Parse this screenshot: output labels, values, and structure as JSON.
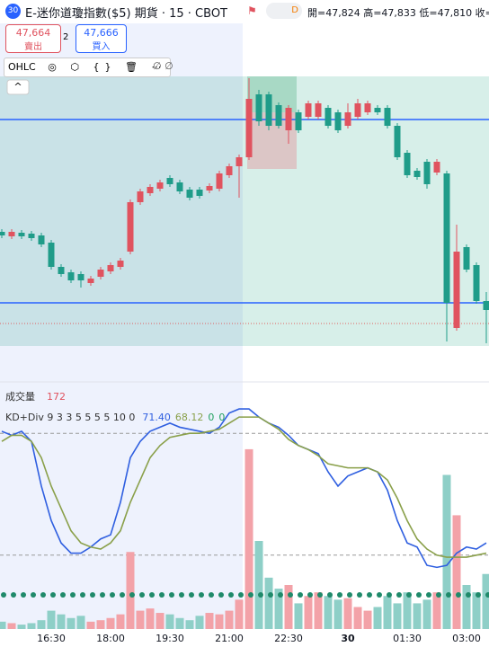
{
  "header": {
    "badge": "30",
    "title": "E-迷你道瓊指數($5) 期貨 · 15 · CBOT",
    "status": "D",
    "ohlc": "開=47,824 高=47,833 低=47,810 收="
  },
  "trade": {
    "sell_price": "47,664",
    "sell": "賣出",
    "qty": "2",
    "buy_price": "47,666",
    "buy": "買入"
  },
  "toolbar": {
    "label": "OHLC",
    "icons": "◎ ⬡ {} 🗑 ⋯",
    "extra": "∅ ∅"
  },
  "chart_data": {
    "type": "candlestick",
    "x": [
      null,
      null,
      null,
      null,
      null,
      "16:30",
      null,
      null,
      null,
      null,
      null,
      "18:00",
      null,
      null,
      null,
      null,
      null,
      "19:30",
      null,
      null,
      null,
      null,
      null,
      "21:00",
      null,
      null,
      null,
      null,
      null,
      "22:30",
      null,
      null,
      null,
      null,
      null,
      "30",
      null,
      null,
      null,
      null,
      null,
      "01:30",
      null,
      null,
      null,
      null,
      null,
      "03:00",
      null,
      null
    ],
    "candles": [
      [
        47842,
        47845,
        47835,
        47838
      ],
      [
        47837,
        47845,
        47834,
        47842
      ],
      [
        47841,
        47844,
        47834,
        47837
      ],
      [
        47840,
        47843,
        47832,
        47835
      ],
      [
        47838,
        47841,
        47825,
        47828
      ],
      [
        47830,
        47833,
        47800,
        47803
      ],
      [
        47803,
        47806,
        47792,
        47795
      ],
      [
        47797,
        47800,
        47785,
        47788
      ],
      [
        47795,
        47798,
        47780,
        47788
      ],
      [
        47785,
        47793,
        47782,
        47790
      ],
      [
        47792,
        47803,
        47789,
        47800
      ],
      [
        47798,
        47808,
        47795,
        47805
      ],
      [
        47803,
        47813,
        47800,
        47810
      ],
      [
        47820,
        47878,
        47817,
        47875
      ],
      [
        47875,
        47890,
        47872,
        47887
      ],
      [
        47885,
        47895,
        47882,
        47892
      ],
      [
        47890,
        47900,
        47887,
        47897
      ],
      [
        47902,
        47905,
        47892,
        47895
      ],
      [
        47897,
        47900,
        47884,
        47887
      ],
      [
        47889,
        47892,
        47877,
        47880
      ],
      [
        47889,
        47892,
        47879,
        47882
      ],
      [
        47888,
        47896,
        47885,
        47893
      ],
      [
        47890,
        47910,
        47887,
        47907
      ],
      [
        47905,
        47918,
        47902,
        47915
      ],
      [
        47915,
        47928,
        47880,
        47925
      ],
      [
        47925,
        48013,
        47922,
        47990
      ],
      [
        47995,
        48000,
        47960,
        47965
      ],
      [
        47995,
        47998,
        47955,
        47960
      ],
      [
        47983,
        47986,
        47957,
        47960
      ],
      [
        47955,
        47983,
        47940,
        47980
      ],
      [
        47975,
        47978,
        47952,
        47955
      ],
      [
        47970,
        47988,
        47967,
        47985
      ],
      [
        47970,
        47988,
        47967,
        47985
      ],
      [
        47980,
        47983,
        47957,
        47960
      ],
      [
        47975,
        47978,
        47952,
        47955
      ],
      [
        47960,
        47985,
        47957,
        47975
      ],
      [
        47970,
        47990,
        47967,
        47985
      ],
      [
        47975,
        47988,
        47972,
        47985
      ],
      [
        47980,
        47983,
        47972,
        47975
      ],
      [
        47980,
        47983,
        47957,
        47960
      ],
      [
        47960,
        47963,
        47922,
        47925
      ],
      [
        47930,
        47933,
        47902,
        47905
      ],
      [
        47910,
        47913,
        47900,
        47903
      ],
      [
        47920,
        47923,
        47890,
        47895
      ],
      [
        47908,
        47923,
        47905,
        47920
      ],
      [
        47907,
        47910,
        47720,
        47763
      ],
      [
        47735,
        47850,
        47732,
        47820
      ],
      [
        47825,
        47828,
        47797,
        47800
      ],
      [
        47805,
        47808,
        47762,
        47765
      ],
      [
        47765,
        47775,
        47718,
        47755
      ]
    ],
    "ylim": [
      47715,
      48015
    ],
    "levels": [
      47967,
      47763
    ],
    "up_color": "#e0535f",
    "down_color": "#1f9c89",
    "volume": {
      "label": "成交量",
      "last": 172,
      "ylim": [
        0,
        300
      ],
      "values": [
        10,
        8,
        6,
        8,
        12,
        25,
        20,
        15,
        18,
        10,
        12,
        15,
        20,
        105,
        25,
        28,
        22,
        20,
        15,
        12,
        18,
        22,
        20,
        25,
        40,
        245,
        120,
        70,
        55,
        60,
        35,
        45,
        50,
        45,
        40,
        42,
        30,
        25,
        30,
        45,
        35,
        50,
        35,
        40,
        50,
        210,
        155,
        60,
        50,
        75
      ],
      "up_color": "#f3a2a8",
      "down_color": "#8ecfc7"
    },
    "kd": {
      "label": "KD+Div 9 3 3 5 5 5 5 10 0",
      "ylim": [
        0,
        100
      ],
      "levels": [
        80,
        20
      ],
      "series": [
        {
          "name": "K",
          "color": "#2f5fe0",
          "values": [
            81,
            79,
            81,
            76,
            54,
            37,
            26,
            21,
            21,
            24,
            28,
            30,
            46,
            68,
            76,
            81,
            83,
            85,
            83,
            82,
            81,
            80,
            83,
            90,
            92,
            92,
            88,
            85,
            83,
            79,
            74,
            72,
            70,
            61,
            54,
            59,
            61,
            63,
            61,
            52,
            37,
            26,
            24,
            15,
            14,
            15,
            21,
            24,
            23,
            26
          ]
        },
        {
          "name": "D",
          "color": "#8aa04a",
          "values": [
            76,
            79,
            79,
            76,
            68,
            54,
            43,
            32,
            26,
            24,
            23,
            26,
            32,
            46,
            57,
            68,
            74,
            78,
            79,
            80,
            80,
            81,
            82,
            85,
            88,
            88,
            88,
            85,
            82,
            77,
            74,
            72,
            69,
            65,
            64,
            63,
            63,
            63,
            61,
            57,
            48,
            37,
            28,
            23,
            20,
            19,
            19,
            19,
            20,
            21
          ]
        }
      ],
      "readouts": [
        {
          "value": 71.4,
          "label": "71.40",
          "color": "#2f5fe0"
        },
        {
          "value": 68.12,
          "label": "68.12",
          "color": "#8aa04a"
        },
        {
          "value": 0,
          "label": "0",
          "color": "#22a060"
        },
        {
          "value": 0,
          "label": "0",
          "color": "#22a060"
        }
      ]
    }
  }
}
